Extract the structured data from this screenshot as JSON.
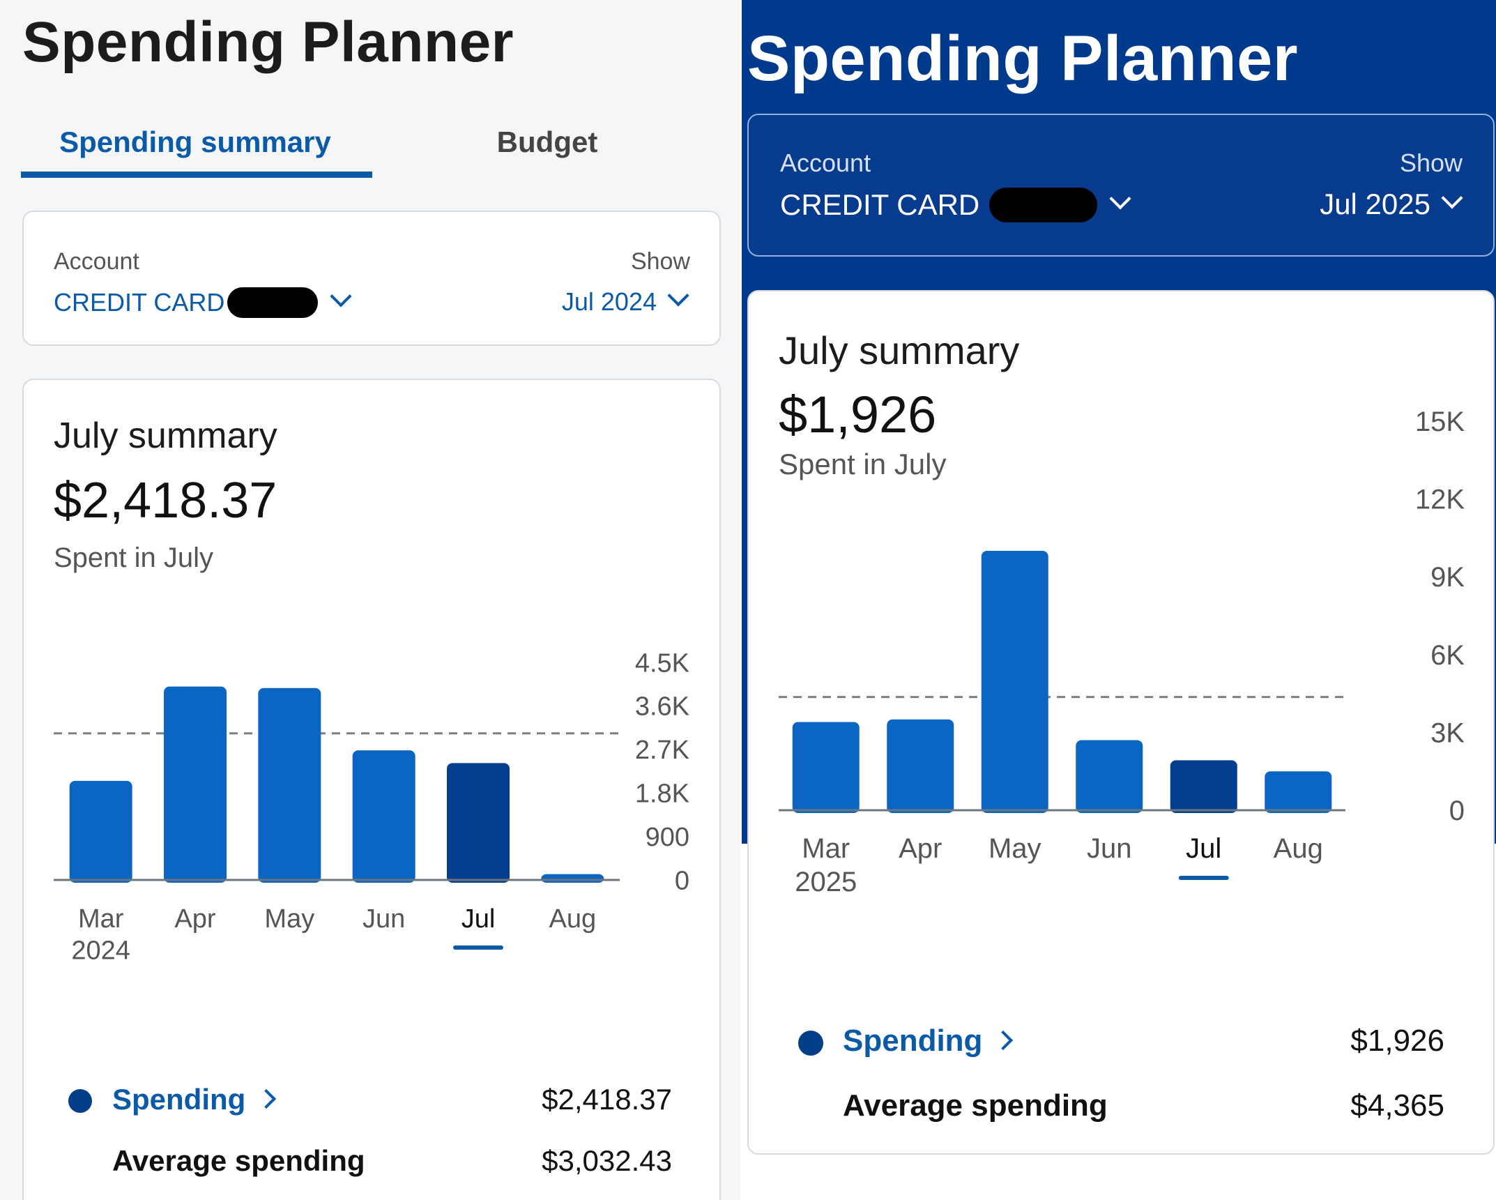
{
  "left": {
    "app_title": "Spending Planner",
    "tabs": [
      {
        "label": "Spending summary",
        "active": true
      },
      {
        "label": "Budget",
        "active": false
      }
    ],
    "account": {
      "label": "Account",
      "value": "CREDIT CARD",
      "show_label": "Show",
      "show_value": "Jul 2024"
    },
    "summary": {
      "title": "July summary",
      "amount": "$2,418.37",
      "subtitle": "Spent in July"
    },
    "legend": {
      "spending_label": "Spending",
      "spending_value": "$2,418.37",
      "average_label": "Average spending",
      "average_value": "$3,032.43"
    }
  },
  "right": {
    "app_title": "Spending Planner",
    "account": {
      "label": "Account",
      "value": "CREDIT CARD",
      "show_label": "Show",
      "show_value": "Jul 2025"
    },
    "summary": {
      "title": "July summary",
      "amount": "$1,926",
      "subtitle": "Spent in July"
    },
    "legend": {
      "spending_label": "Spending",
      "spending_value": "$1,926",
      "average_label": "Average spending",
      "average_value": "$4,365"
    }
  },
  "colors": {
    "accent": "#0b5aa8",
    "bar": "#0a66c2",
    "bar_selected": "#033f8e",
    "hero": "#003a8c"
  },
  "chart_data": [
    {
      "type": "bar",
      "title": "July summary",
      "categories": [
        "Mar",
        "Apr",
        "May",
        "Jun",
        "Jul",
        "Aug"
      ],
      "first_category_year": "2024",
      "values": [
        2050,
        4000,
        3970,
        2680,
        2418.37,
        120
      ],
      "selected_index": 4,
      "average": 3032.43,
      "yticks": [
        "4.5K",
        "3.6K",
        "2.7K",
        "1.8K",
        "900",
        "0"
      ],
      "ytick_values": [
        4500,
        3600,
        2700,
        1800,
        900,
        0
      ],
      "ylim": [
        0,
        4500
      ]
    },
    {
      "type": "bar",
      "title": "July summary",
      "categories": [
        "Mar",
        "Apr",
        "May",
        "Jun",
        "Jul",
        "Aug"
      ],
      "first_category_year": "2025",
      "values": [
        3400,
        3500,
        10000,
        2700,
        1926,
        1500
      ],
      "selected_index": 4,
      "average": 4365,
      "yticks": [
        "15K",
        "12K",
        "9K",
        "6K",
        "3K",
        "0"
      ],
      "ytick_values": [
        15000,
        12000,
        9000,
        6000,
        3000,
        0
      ],
      "ylim": [
        0,
        15000
      ]
    }
  ]
}
